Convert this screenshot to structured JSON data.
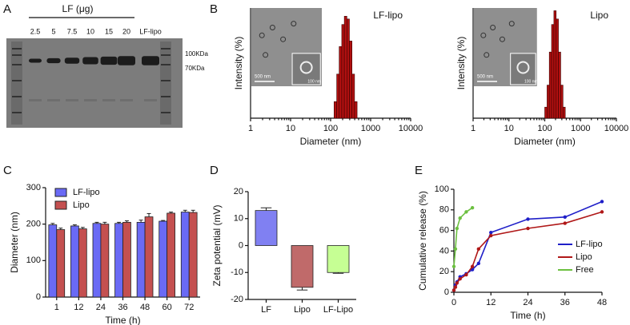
{
  "gel": {
    "label": "A",
    "group_label": "LF (μg)",
    "lanes": [
      "2.5",
      "5",
      "7.5",
      "10",
      "15",
      "20",
      "LF-lipo"
    ],
    "markers": [
      "100KDa",
      "70KDa"
    ]
  },
  "chart_data": [
    {
      "type": "histogram",
      "label": "B",
      "title": "LF-lipo",
      "xlabel": "Diameter (nm)",
      "ylabel": "Intensity (%)",
      "log_x": true,
      "xlim": [
        1,
        10000
      ],
      "xticks": [
        1,
        10,
        100,
        1000,
        10000
      ],
      "ylim": [
        0,
        20
      ],
      "bins": [
        122,
        142,
        164,
        190,
        220,
        255,
        295,
        342,
        396,
        459
      ],
      "values": [
        3,
        8,
        13,
        17,
        18.5,
        18,
        14,
        8,
        3
      ],
      "color": "#b01010",
      "inset_scale": [
        "500 nm",
        "100 nm"
      ]
    },
    {
      "type": "histogram",
      "title": "Lipo",
      "xlabel": "Diameter (nm)",
      "ylabel": "Intensity (%)",
      "log_x": true,
      "xlim": [
        1,
        10000
      ],
      "xticks": [
        1,
        10,
        100,
        1000,
        10000
      ],
      "ylim": [
        0,
        20
      ],
      "bins": [
        100,
        116,
        134,
        155,
        180,
        208,
        241,
        279,
        323,
        374
      ],
      "values": [
        2,
        6,
        12,
        17,
        19.5,
        18,
        12,
        6,
        2
      ],
      "color": "#b01010",
      "inset_scale": [
        "500 nm",
        "100 nm"
      ]
    },
    {
      "type": "bar",
      "label": "C",
      "xlabel": "Time (h)",
      "ylabel": "Diameter (nm)",
      "categories": [
        "1",
        "12",
        "24",
        "36",
        "48",
        "60",
        "72"
      ],
      "ylim": [
        0,
        300
      ],
      "yticks": [
        0,
        100,
        200,
        300
      ],
      "legend": "upper left",
      "series": [
        {
          "name": "LF-lipo",
          "color": "#6a6af5",
          "values": [
            198,
            195,
            202,
            202,
            205,
            208,
            233
          ],
          "errors": [
            4,
            3,
            3,
            3,
            6,
            2,
            5
          ]
        },
        {
          "name": "Lipo",
          "color": "#c45050",
          "values": [
            185,
            187,
            200,
            205,
            220,
            230,
            232
          ],
          "errors": [
            4,
            4,
            5,
            4,
            9,
            3,
            6
          ]
        }
      ]
    },
    {
      "type": "bar",
      "label": "D",
      "ylabel": "Zeta potential (mV)",
      "categories": [
        "LF",
        "Lipo",
        "LF-Lipo"
      ],
      "ylim": [
        -20,
        20
      ],
      "yticks": [
        -20,
        -10,
        0,
        10,
        20
      ],
      "series": [
        {
          "values": [
            13,
            -15.5,
            -10
          ],
          "errors": [
            1,
            1,
            0.3
          ],
          "colors": [
            "#8080f2",
            "#c06a6a",
            "#c6ff94"
          ]
        }
      ]
    },
    {
      "type": "line",
      "label": "E",
      "xlabel": "Time (h)",
      "ylabel": "Cumulative release (%)",
      "xlim": [
        0,
        48
      ],
      "xticks": [
        0,
        12,
        24,
        36,
        48
      ],
      "ylim": [
        0,
        100
      ],
      "yticks": [
        0,
        20,
        40,
        60,
        80,
        100
      ],
      "legend": "lower right",
      "series": [
        {
          "name": "LF-lipo",
          "color": "#1f1fc8",
          "x": [
            0,
            0.5,
            1,
            2,
            4,
            6,
            8,
            12,
            24,
            36,
            48
          ],
          "values": [
            2,
            7,
            10,
            15,
            18,
            22,
            28,
            58,
            71,
            73,
            88
          ]
        },
        {
          "name": "Lipo",
          "color": "#b01818",
          "x": [
            0,
            0.5,
            1,
            2,
            4,
            6,
            8,
            12,
            24,
            36,
            48
          ],
          "values": [
            2,
            5,
            9,
            13,
            17,
            25,
            42,
            55,
            62,
            67,
            78
          ]
        },
        {
          "name": "Free",
          "color": "#6cc040",
          "x": [
            0,
            0.5,
            1,
            2,
            4,
            6
          ],
          "values": [
            25,
            42,
            62,
            72,
            78,
            82
          ]
        }
      ]
    }
  ]
}
